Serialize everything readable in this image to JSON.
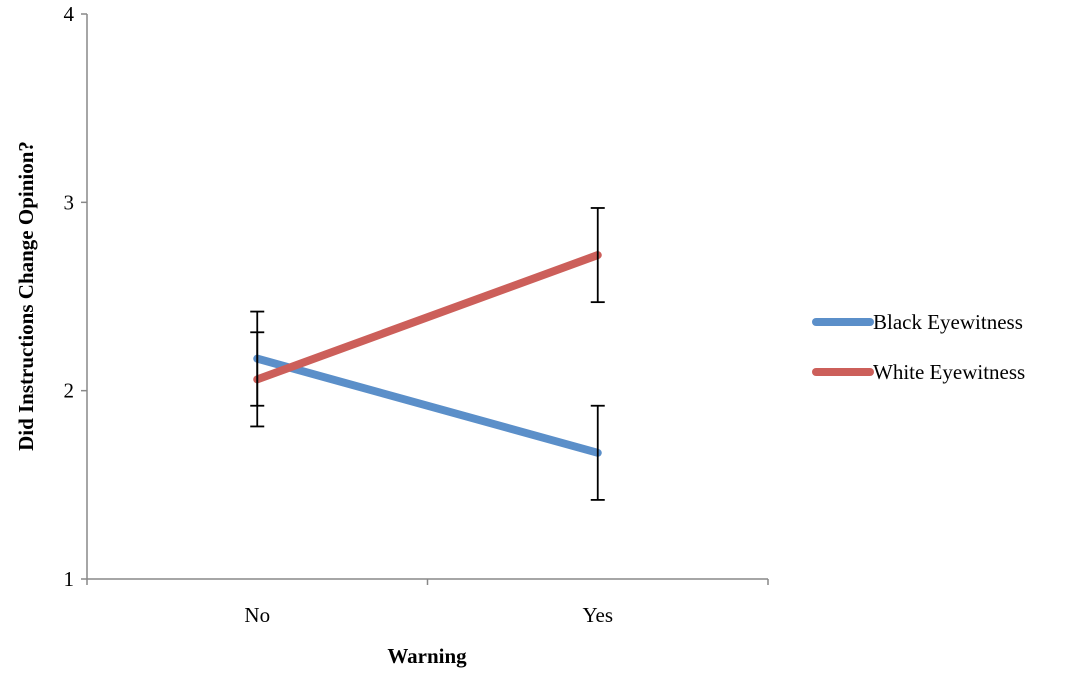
{
  "chart_data": {
    "type": "line",
    "title": "",
    "xlabel": "Warning",
    "ylabel": "Did Instructions Change Opinion?",
    "categories": [
      "No",
      "Yes"
    ],
    "ylim": [
      1,
      4
    ],
    "yticks": [
      1,
      2,
      3,
      4
    ],
    "grid": false,
    "legend_position": "right",
    "series": [
      {
        "name": "Black Eyewitness",
        "color": "#5b8fc9",
        "values": [
          2.17,
          1.67
        ],
        "error": [
          0.25,
          0.25
        ]
      },
      {
        "name": "White Eyewitness",
        "color": "#cc5f5a",
        "values": [
          2.06,
          2.72
        ],
        "error": [
          0.25,
          0.25
        ]
      }
    ]
  }
}
